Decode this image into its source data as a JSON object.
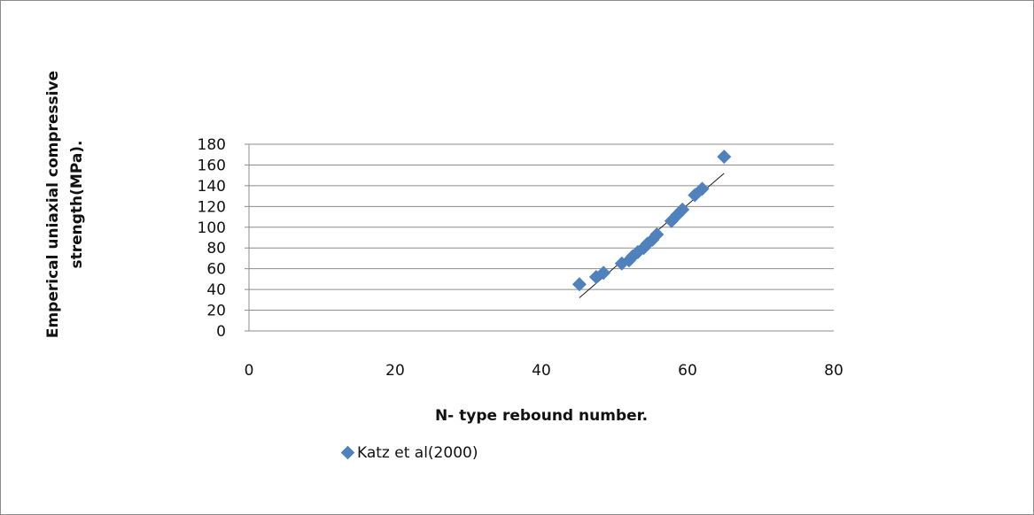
{
  "chart_data": {
    "type": "scatter",
    "xlabel": "N- type rebound number.",
    "ylabel_lines": [
      "Emperical uniaxial compressive",
      "strength(MPa)."
    ],
    "xlim": [
      0,
      80
    ],
    "ylim": [
      0,
      180
    ],
    "x_ticks": [
      "0",
      "20",
      "40",
      "60",
      "80"
    ],
    "y_ticks": [
      "0",
      "20",
      "40",
      "60",
      "80",
      "100",
      "120",
      "140",
      "160",
      "180"
    ],
    "grid": "horizontal",
    "legend_position": "bottom-left",
    "series": [
      {
        "name": "Katz et al(2000)",
        "color": "#4f81bd",
        "marker": "diamond",
        "points": [
          [
            45.2,
            45
          ],
          [
            47.5,
            52
          ],
          [
            48.5,
            56
          ],
          [
            51.0,
            65
          ],
          [
            52.0,
            68
          ],
          [
            52.5,
            72
          ],
          [
            53.2,
            76
          ],
          [
            54.0,
            80
          ],
          [
            54.5,
            84
          ],
          [
            55.2,
            88
          ],
          [
            55.8,
            93
          ],
          [
            57.8,
            106
          ],
          [
            58.6,
            112
          ],
          [
            59.3,
            117
          ],
          [
            61.0,
            131
          ],
          [
            62.0,
            137
          ],
          [
            65.0,
            168
          ]
        ]
      }
    ],
    "trendline": {
      "color": "#1a1a1a",
      "from": [
        45.2,
        32
      ],
      "to": [
        65.0,
        152
      ]
    }
  }
}
